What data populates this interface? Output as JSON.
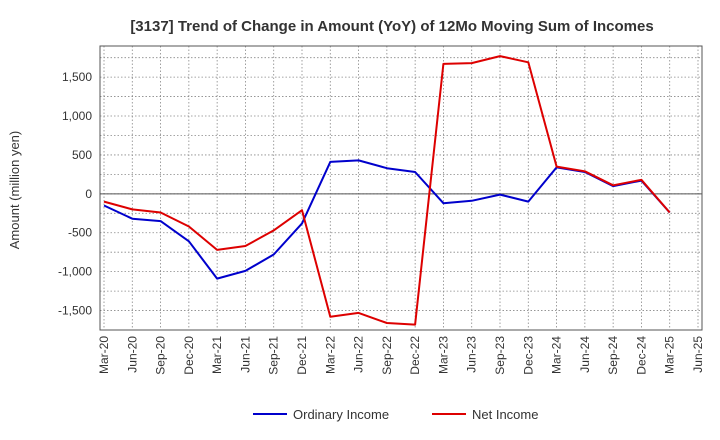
{
  "chart_data": {
    "type": "line",
    "title": "[3137]  Trend of Change in Amount (YoY) of 12Mo Moving Sum of Incomes",
    "ylabel": "Amount (million yen)",
    "xlabel": "",
    "ylim": [
      -1750,
      1900
    ],
    "yticks": [
      -1500,
      -1000,
      -500,
      0,
      500,
      1000,
      1500
    ],
    "ytick_labels": [
      "-1,500",
      "-1,000",
      "-500",
      "0",
      "500",
      "1,000",
      "1,500"
    ],
    "categories": [
      "Mar-20",
      "Jun-20",
      "Sep-20",
      "Dec-20",
      "Mar-21",
      "Jun-21",
      "Sep-21",
      "Dec-21",
      "Mar-22",
      "Jun-22",
      "Sep-22",
      "Dec-22",
      "Mar-23",
      "Jun-23",
      "Sep-23",
      "Dec-23",
      "Mar-24",
      "Jun-24",
      "Sep-24",
      "Dec-24",
      "Mar-25",
      "Jun-25"
    ],
    "grid": true,
    "legend_position": "bottom",
    "series": [
      {
        "name": "Ordinary Income",
        "color": "#0000cc",
        "values": [
          -150,
          -320,
          -350,
          -610,
          -1090,
          -990,
          -780,
          -380,
          410,
          430,
          330,
          280,
          -120,
          -90,
          -10,
          -100,
          340,
          280,
          100,
          170,
          -240,
          null
        ]
      },
      {
        "name": "Net Income",
        "color": "#dd0000",
        "values": [
          -100,
          -200,
          -240,
          -420,
          -720,
          -670,
          -470,
          -210,
          -1580,
          -1530,
          -1660,
          -1680,
          1670,
          1680,
          1770,
          1690,
          350,
          290,
          110,
          180,
          -240,
          null
        ]
      }
    ]
  }
}
